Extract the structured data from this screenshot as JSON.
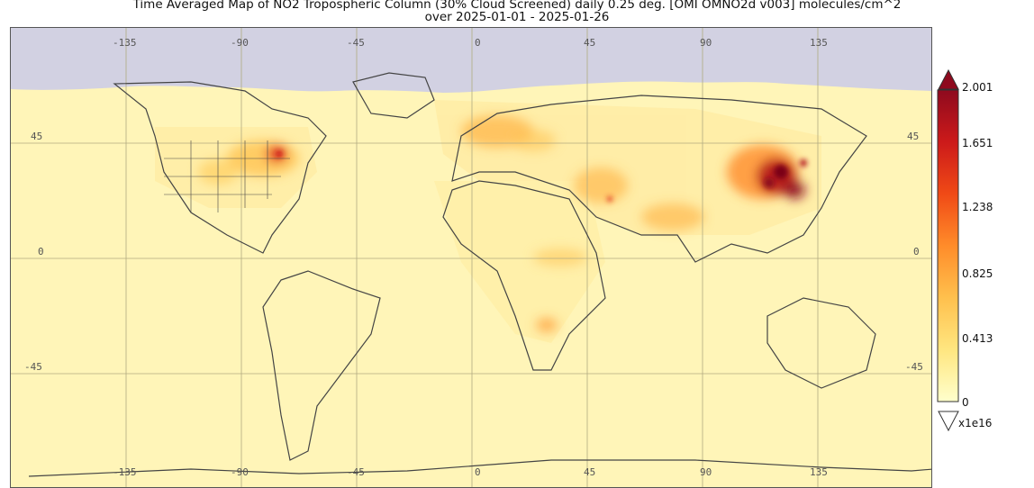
{
  "title": {
    "line1": "Time Averaged Map of NO2 Tropospheric Column (30% Cloud Screened) daily 0.25 deg. [OMI OMNO2d v003] molecules/cm^2",
    "line2": "over 2025-01-01 - 2025-01-26"
  },
  "map": {
    "lon_ticks": [
      "-135",
      "-90",
      "-45",
      "0",
      "45",
      "90",
      "135"
    ],
    "lat_ticks_left": [
      "45",
      "0",
      "-45"
    ],
    "lat_ticks_right": [
      "45",
      "0",
      "-45"
    ],
    "colors": {
      "nodata": "#d2d1e2",
      "background": "#fff5b8",
      "grid": "#b0aa80",
      "coast": "#444444"
    }
  },
  "colorbar": {
    "labels": [
      "2.001",
      "1.651",
      "1.238",
      "0.825",
      "0.413",
      "0"
    ],
    "scale": "x1e16",
    "colors": [
      "#ffffcc",
      "#ffe680",
      "#ffc04d",
      "#ff8c2a",
      "#f04a16",
      "#cc1a1a",
      "#8e0a1e"
    ]
  }
}
